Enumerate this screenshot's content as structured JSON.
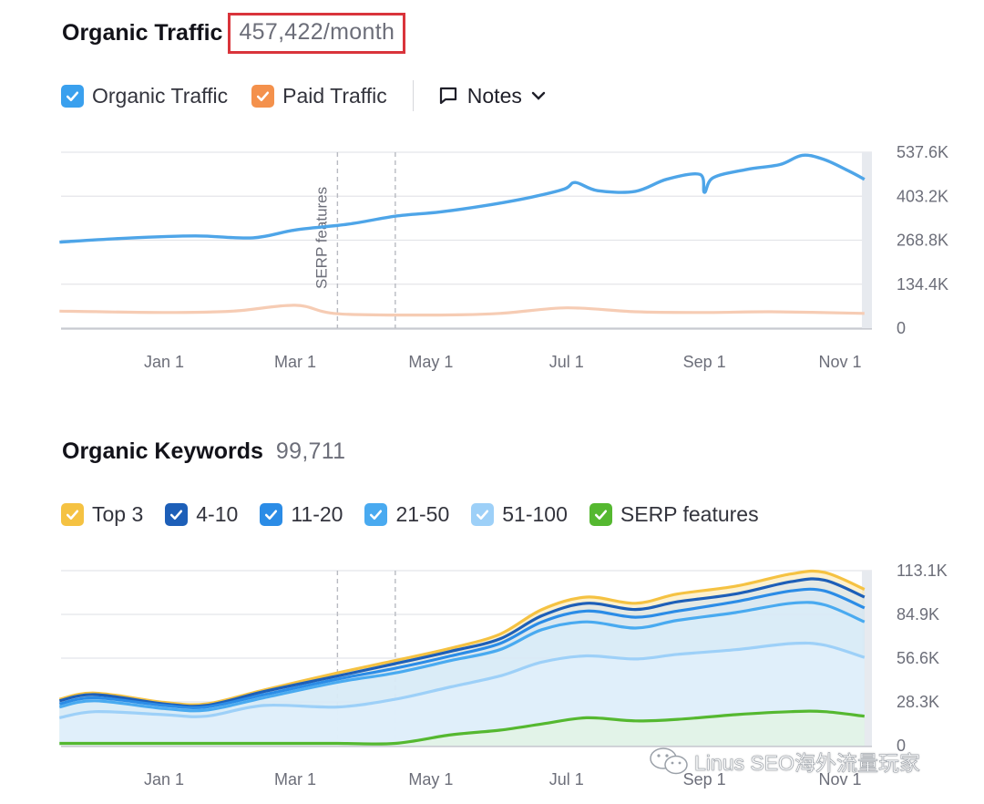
{
  "traffic": {
    "title": "Organic Traffic",
    "value": "457,422/month",
    "legend": {
      "organic": "Organic Traffic",
      "paid": "Paid Traffic",
      "notes": "Notes"
    }
  },
  "keywords": {
    "title": "Organic Keywords",
    "value": "99,711",
    "legend": [
      "Top 3",
      "4-10",
      "11-20",
      "21-50",
      "51-100",
      "SERP features"
    ]
  },
  "colors": {
    "organic": "#4ea5e8",
    "paid": "#f6ccb4",
    "top3": "#f5c242",
    "k4_10": "#1d5fb8",
    "k11_20": "#2b8ce6",
    "k21_50": "#49aaf0",
    "k51_100": "#9dd0f8",
    "serp": "#55b830",
    "highlight": "#d9343b"
  },
  "watermark": "Linus SEO海外流量玩家",
  "chart_data": [
    {
      "type": "line",
      "title": "Organic Traffic",
      "x_ticks": [
        "Jan 1",
        "Mar 1",
        "May 1",
        "Jul 1",
        "Sep 1",
        "Nov 1"
      ],
      "y_ticks": [
        "537.6K",
        "403.2K",
        "268.8K",
        "134.4K",
        "0"
      ],
      "ylim": [
        0,
        537600
      ],
      "grid": true,
      "annotation": "SERP features",
      "series": [
        {
          "name": "Organic Traffic",
          "x": [
            "Nov 15",
            "Dec 15",
            "Jan 15",
            "Feb 10",
            "Mar 1",
            "Mar 25",
            "Apr 15",
            "May 5",
            "May 25",
            "Jun 15",
            "Jun 30",
            "Jul 5",
            "Jul 15",
            "Aug 1",
            "Aug 15",
            "Aug 30",
            "Sep 1",
            "Sep 5",
            "Sep 20",
            "Oct 5",
            "Oct 15",
            "Oct 25",
            "Nov 5",
            "Nov 12"
          ],
          "values": [
            263000,
            275000,
            282000,
            276000,
            300000,
            318000,
            342000,
            355000,
            374000,
            400000,
            425000,
            445000,
            420000,
            418000,
            455000,
            470000,
            415000,
            460000,
            485000,
            500000,
            528000,
            515000,
            480000,
            455000
          ]
        },
        {
          "name": "Paid Traffic",
          "x": [
            "Nov 15",
            "Jan 1",
            "Feb 1",
            "Mar 1",
            "Mar 20",
            "May 1",
            "Jun 1",
            "Jul 1",
            "Aug 1",
            "Sep 1",
            "Oct 1",
            "Nov 12"
          ],
          "values": [
            52000,
            48000,
            52000,
            70000,
            44000,
            40000,
            45000,
            62000,
            50000,
            48000,
            50000,
            45000
          ]
        }
      ]
    },
    {
      "type": "area",
      "title": "Organic Keywords",
      "x_ticks": [
        "Jan 1",
        "Mar 1",
        "May 1",
        "Jul 1",
        "Sep 1",
        "Nov 1"
      ],
      "y_ticks": [
        "113.1K",
        "84.9K",
        "56.6K",
        "28.3K",
        "0"
      ],
      "ylim": [
        0,
        113100
      ],
      "grid": true,
      "x": [
        "Nov 15",
        "Dec 1",
        "Jan 1",
        "Jan 20",
        "Feb 15",
        "Mar 20",
        "Apr 15",
        "May 10",
        "Jun 1",
        "Jun 20",
        "Jul 10",
        "Aug 1",
        "Aug 20",
        "Sep 15",
        "Oct 10",
        "Oct 25",
        "Nov 12"
      ],
      "series": [
        {
          "name": "Top 3",
          "values": [
            30000,
            34000,
            28000,
            27000,
            36000,
            47000,
            55000,
            63000,
            72000,
            88000,
            96000,
            92000,
            98000,
            103000,
            111000,
            112000,
            101000
          ]
        },
        {
          "name": "4-10",
          "values": [
            29000,
            33000,
            27000,
            26000,
            35000,
            45000,
            53000,
            61000,
            69000,
            84000,
            92000,
            88000,
            93000,
            98000,
            106000,
            107000,
            96000
          ]
        },
        {
          "name": "11-20",
          "values": [
            27000,
            31000,
            26000,
            25000,
            33000,
            43000,
            50000,
            58000,
            66000,
            80000,
            87000,
            83000,
            87000,
            93000,
            100000,
            100000,
            89000
          ]
        },
        {
          "name": "21-50",
          "values": [
            25000,
            29000,
            24000,
            23000,
            31000,
            41000,
            47000,
            55000,
            62000,
            75000,
            80000,
            76000,
            81000,
            86000,
            92000,
            91000,
            80000
          ]
        },
        {
          "name": "51-100",
          "values": [
            18000,
            22000,
            20000,
            19000,
            26000,
            25000,
            30000,
            38000,
            45000,
            54000,
            58000,
            56000,
            59000,
            62000,
            66000,
            65000,
            57000
          ]
        },
        {
          "name": "SERP features",
          "values": [
            1500,
            1500,
            1500,
            1500,
            1500,
            1500,
            1500,
            7000,
            10000,
            14000,
            18000,
            16000,
            17000,
            20000,
            22000,
            22000,
            19000
          ]
        }
      ]
    }
  ]
}
